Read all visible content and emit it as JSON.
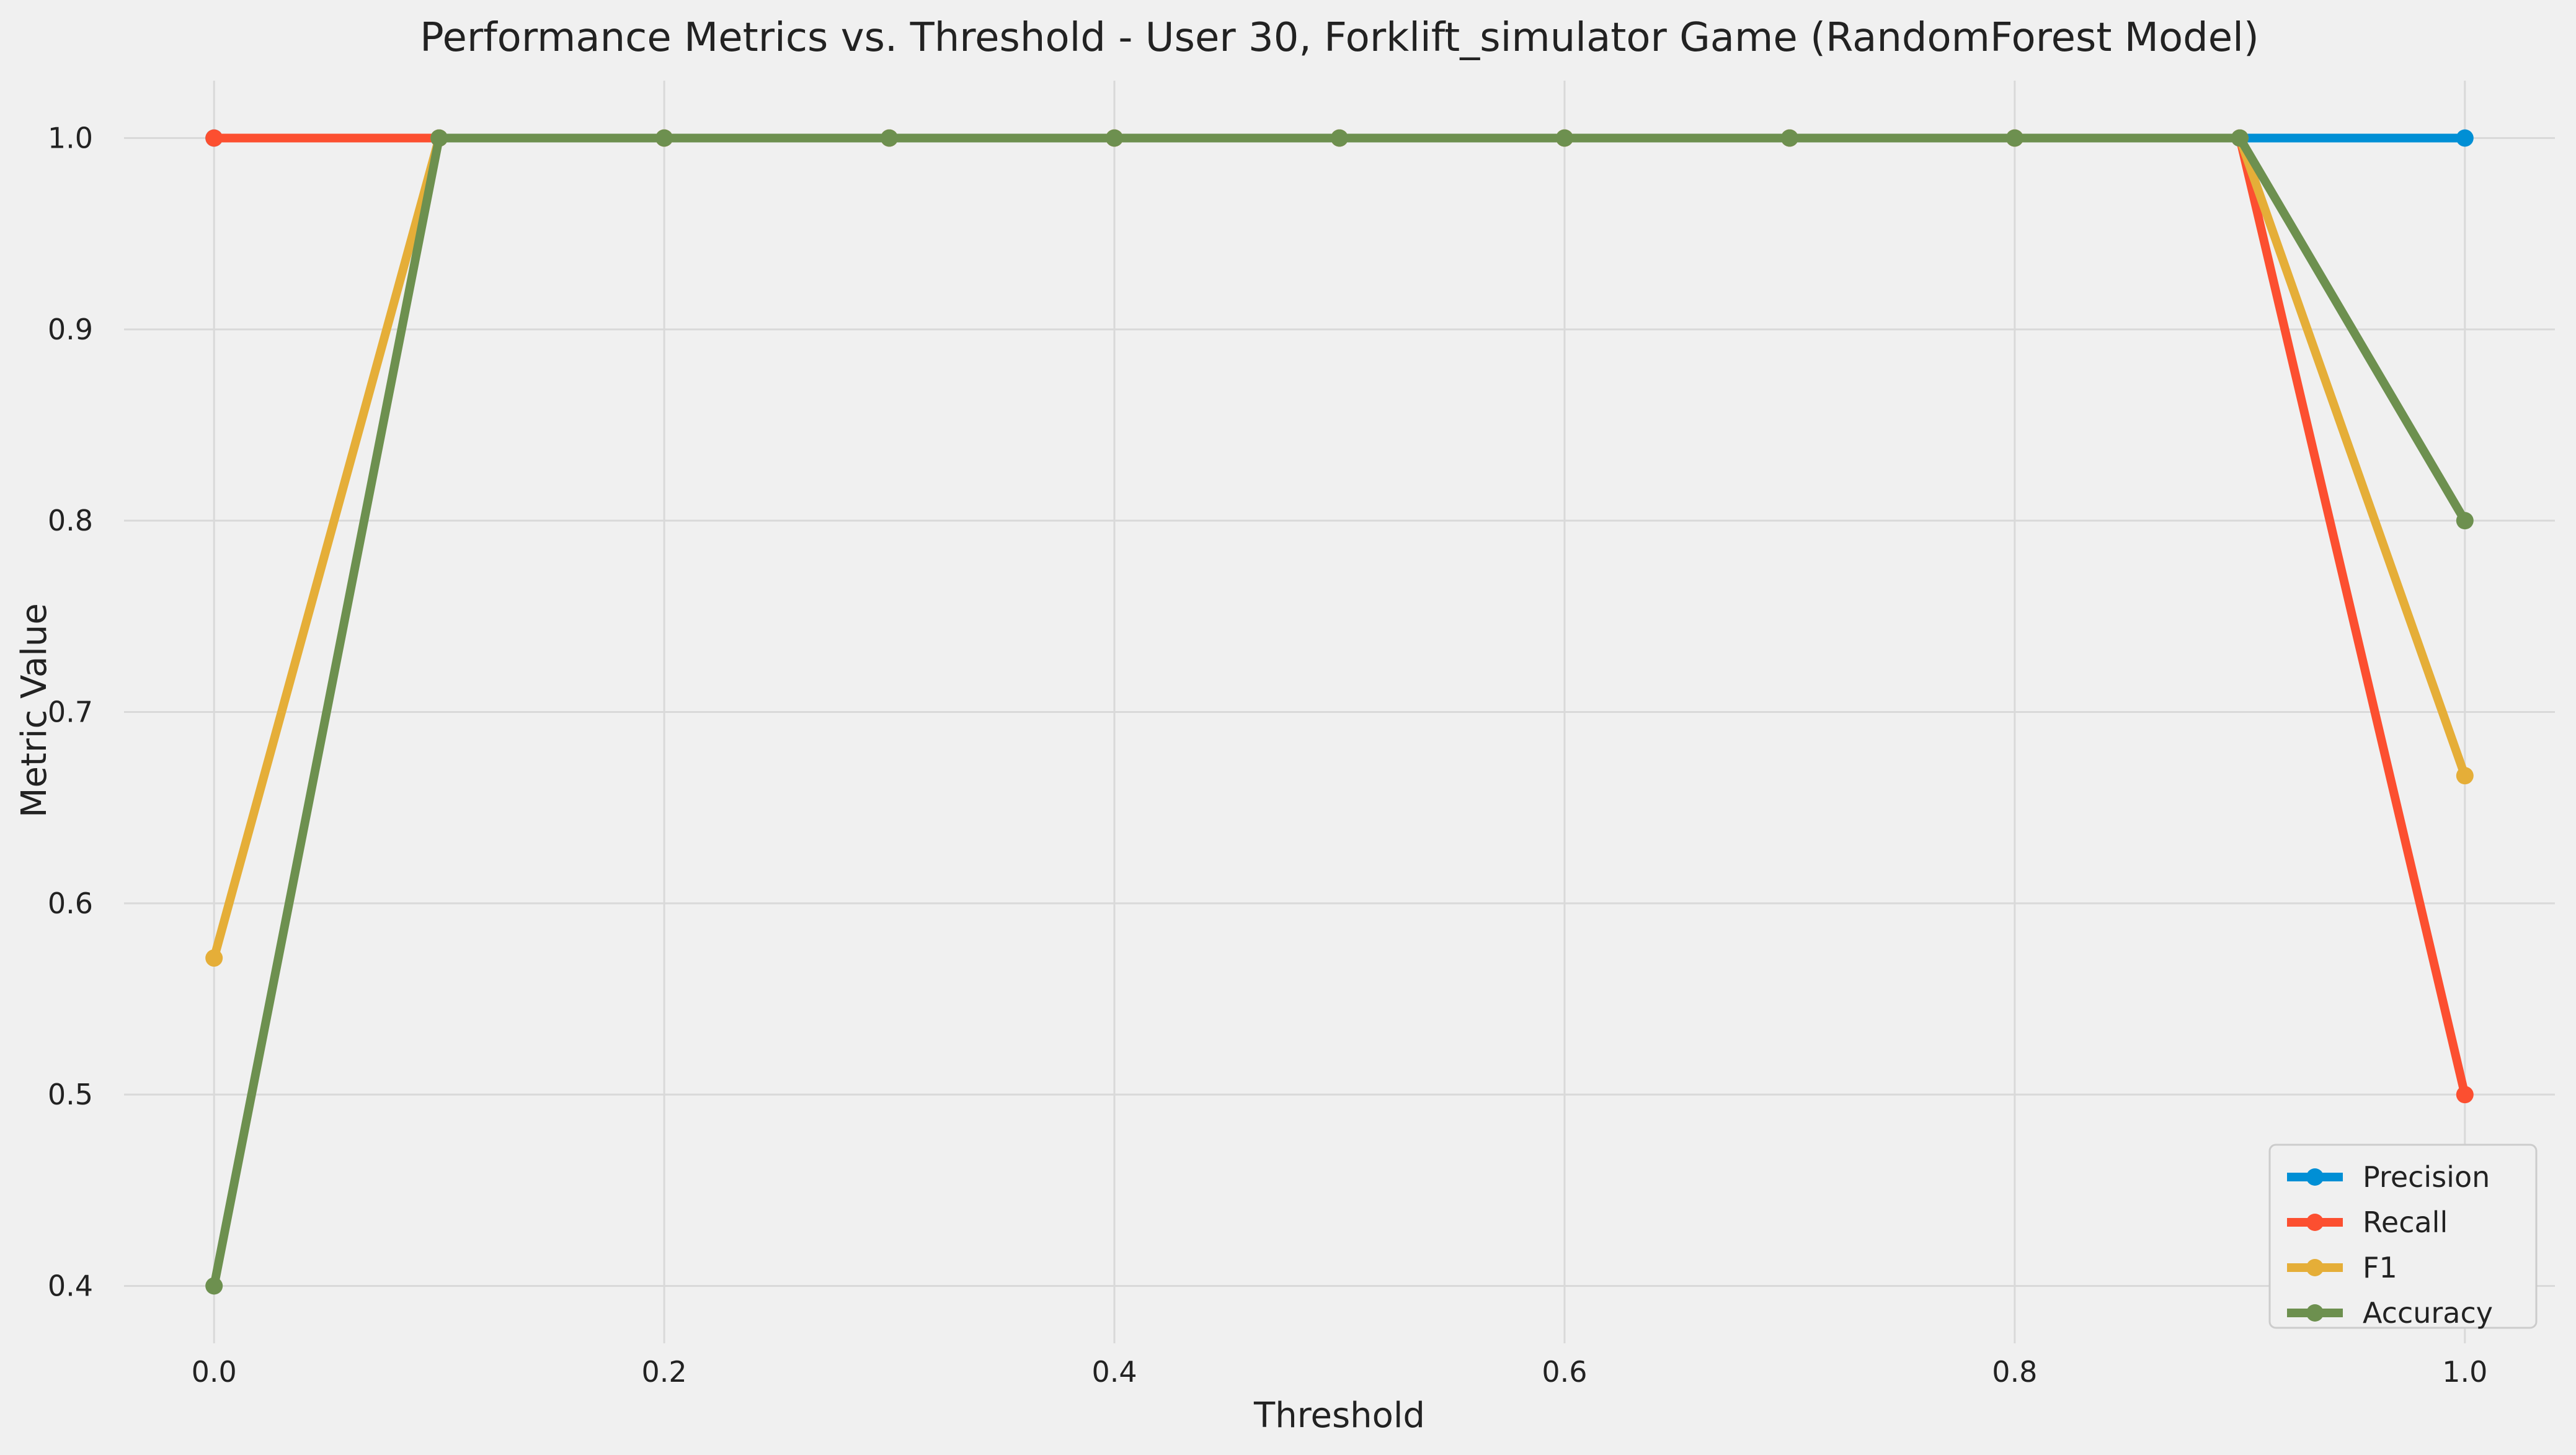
{
  "chart_data": {
    "type": "line",
    "title": "Performance Metrics vs. Threshold - User 30, Forklift_simulator Game (RandomForest Model)",
    "xlabel": "Threshold",
    "ylabel": "Metric Value",
    "x": [
      0.0,
      0.1,
      0.2,
      0.3,
      0.4,
      0.5,
      0.6,
      0.7,
      0.8,
      0.9,
      1.0
    ],
    "xlim": [
      -0.04,
      1.04
    ],
    "ylim": [
      0.37,
      1.03
    ],
    "x_ticks": [
      "0.0",
      "0.2",
      "0.4",
      "0.6",
      "0.8",
      "1.0"
    ],
    "y_ticks": [
      "0.4",
      "0.5",
      "0.6",
      "0.7",
      "0.8",
      "0.9",
      "1.0"
    ],
    "grid": true,
    "legend_position": "lower-right",
    "series": [
      {
        "name": "Precision",
        "color": "#008fd5",
        "values": [
          1.0,
          1.0,
          1.0,
          1.0,
          1.0,
          1.0,
          1.0,
          1.0,
          1.0,
          1.0,
          1.0
        ]
      },
      {
        "name": "Recall",
        "color": "#fc4f30",
        "values": [
          1.0,
          1.0,
          1.0,
          1.0,
          1.0,
          1.0,
          1.0,
          1.0,
          1.0,
          1.0,
          0.5
        ]
      },
      {
        "name": "F1",
        "color": "#e5ae38",
        "values": [
          0.5714,
          1.0,
          1.0,
          1.0,
          1.0,
          1.0,
          1.0,
          1.0,
          1.0,
          1.0,
          0.6667
        ]
      },
      {
        "name": "Accuracy",
        "color": "#6d904f",
        "values": [
          0.4,
          1.0,
          1.0,
          1.0,
          1.0,
          1.0,
          1.0,
          1.0,
          1.0,
          1.0,
          0.8
        ]
      }
    ]
  }
}
